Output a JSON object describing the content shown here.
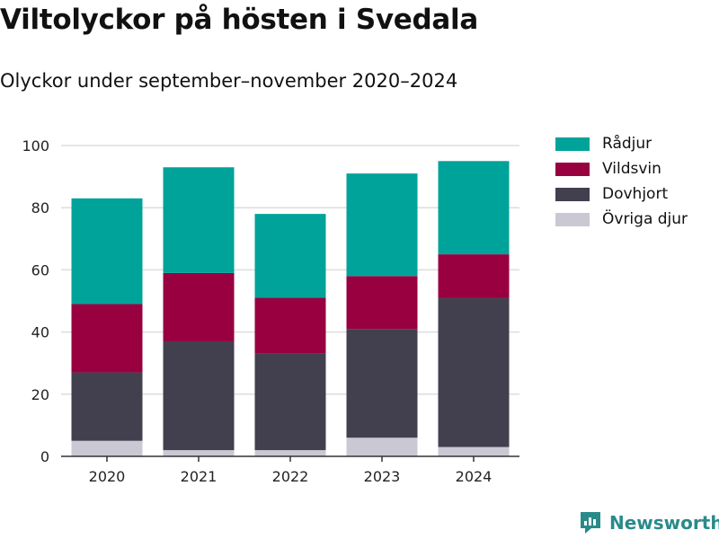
{
  "header": {
    "title": "Viltolyckor på hösten i Svedala",
    "subtitle": "Olyckor under september–november 2020–2024"
  },
  "chart_data": {
    "type": "bar",
    "stacked": true,
    "categories": [
      "2020",
      "2021",
      "2022",
      "2023",
      "2024"
    ],
    "series": [
      {
        "name": "Övriga djur",
        "color": "#c9c8d3",
        "values": [
          5,
          2,
          2,
          6,
          3
        ]
      },
      {
        "name": "Dovhjort",
        "color": "#42404f",
        "values": [
          22,
          35,
          31,
          35,
          48
        ]
      },
      {
        "name": "Vildsvin",
        "color": "#980040",
        "values": [
          22,
          22,
          18,
          17,
          14
        ]
      },
      {
        "name": "Rådjur",
        "color": "#00a39a",
        "values": [
          34,
          34,
          27,
          33,
          30
        ]
      }
    ],
    "y_ticks": [
      "0",
      "20",
      "40",
      "60",
      "80",
      "100"
    ],
    "ylim": [
      0,
      100
    ],
    "grid": true,
    "legend_position": "right"
  },
  "legend": {
    "items": [
      {
        "label": "Rådjur",
        "color": "#00a39a"
      },
      {
        "label": "Vildsvin",
        "color": "#980040"
      },
      {
        "label": "Dovhjort",
        "color": "#42404f"
      },
      {
        "label": "Övriga djur",
        "color": "#c9c8d3"
      }
    ]
  },
  "brand": {
    "name": "Newsworthy",
    "color": "#2a8a8a",
    "icon": "newsworthy-logo-icon"
  }
}
